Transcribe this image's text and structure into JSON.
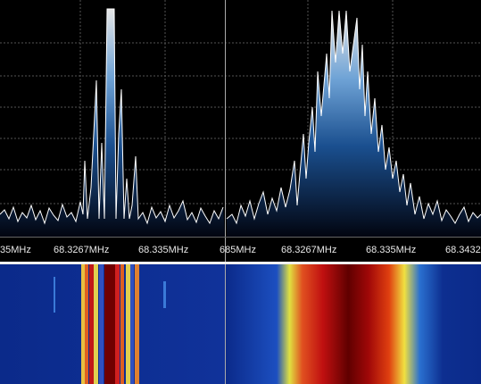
{
  "left_panel": {
    "freq_labels": [
      "35MHz",
      "68.3267MHz",
      "68.335MHz"
    ]
  },
  "center_label": "685MHz",
  "right_panel": {
    "freq_labels": [
      "68.3267MHz",
      "68.335MHz",
      "68.3432"
    ]
  }
}
